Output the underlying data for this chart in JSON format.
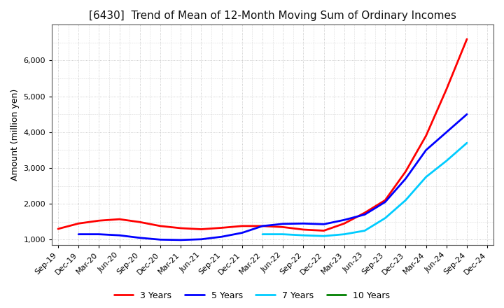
{
  "title": "[6430]  Trend of Mean of 12-Month Moving Sum of Ordinary Incomes",
  "ylabel": "Amount (million yen)",
  "background_color": "#ffffff",
  "plot_bg_color": "#ffffff",
  "grid_color": "#bbbbbb",
  "line_colors": {
    "3Y": "#ff0000",
    "5Y": "#0000ff",
    "7Y": "#00ccff",
    "10Y": "#008000"
  },
  "legend_labels": [
    "3 Years",
    "5 Years",
    "7 Years",
    "10 Years"
  ],
  "x_labels": [
    "Sep-19",
    "Dec-19",
    "Mar-20",
    "Jun-20",
    "Sep-20",
    "Dec-20",
    "Mar-21",
    "Jun-21",
    "Sep-21",
    "Dec-21",
    "Mar-22",
    "Jun-22",
    "Sep-22",
    "Dec-22",
    "Mar-23",
    "Jun-23",
    "Sep-23",
    "Dec-23",
    "Mar-24",
    "Jun-24",
    "Sep-24",
    "Dec-24"
  ],
  "y3": [
    1300,
    1450,
    1530,
    1570,
    1490,
    1380,
    1320,
    1290,
    1330,
    1380,
    1380,
    1350,
    1280,
    1250,
    1450,
    1750,
    2100,
    2900,
    3900,
    5200,
    6600,
    null
  ],
  "y5": [
    null,
    1150,
    1150,
    1120,
    1050,
    1000,
    990,
    1010,
    1080,
    1190,
    1380,
    1440,
    1450,
    1430,
    1550,
    1700,
    2050,
    2700,
    3500,
    4000,
    4500,
    null
  ],
  "y7": [
    null,
    null,
    null,
    null,
    null,
    null,
    null,
    null,
    null,
    null,
    1150,
    1150,
    1120,
    1100,
    1150,
    1250,
    1600,
    2100,
    2750,
    3200,
    3700,
    null
  ],
  "y10": [
    null,
    null,
    null,
    null,
    null,
    null,
    null,
    null,
    null,
    null,
    null,
    null,
    null,
    null,
    null,
    null,
    null,
    null,
    null,
    null,
    null,
    null
  ],
  "ylim": [
    850,
    7000
  ],
  "yticks": [
    1000,
    2000,
    3000,
    4000,
    5000,
    6000
  ],
  "title_fontsize": 11,
  "axis_label_fontsize": 9,
  "tick_fontsize": 8,
  "legend_fontsize": 9,
  "line_width": 2.0
}
